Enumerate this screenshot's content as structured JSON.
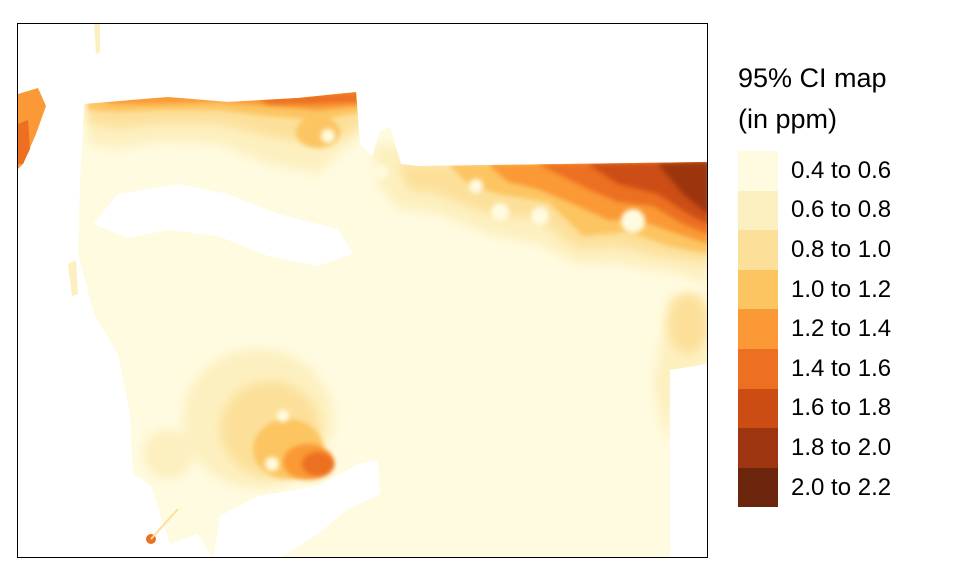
{
  "legend": {
    "title_line1": "95% CI map",
    "title_line2": "(in ppm)",
    "classes": [
      {
        "label": "0.4 to 0.6",
        "color": "#fffbe0"
      },
      {
        "label": "0.6 to 0.8",
        "color": "#fdf0c0"
      },
      {
        "label": "0.8 to 1.0",
        "color": "#fce09a"
      },
      {
        "label": "1.0 to 1.2",
        "color": "#fcc562"
      },
      {
        "label": "1.2 to 1.4",
        "color": "#fa9936"
      },
      {
        "label": "1.4 to 1.6",
        "color": "#ec6f22"
      },
      {
        "label": "1.6 to 1.8",
        "color": "#cc4d14"
      },
      {
        "label": "1.8 to 2.0",
        "color": "#9c3510"
      },
      {
        "label": "2.0 to 2.2",
        "color": "#6c250d"
      }
    ]
  }
}
